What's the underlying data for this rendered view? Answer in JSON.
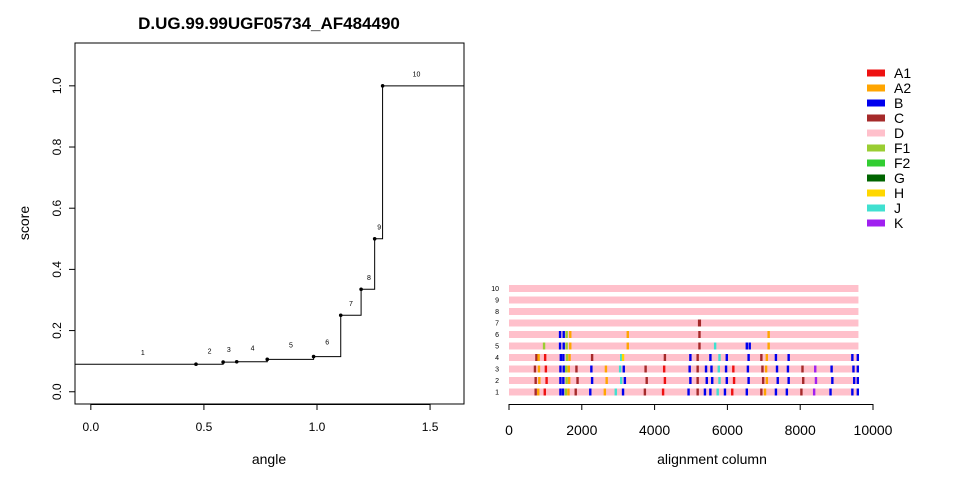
{
  "colors": {
    "A1": "#ee1111",
    "A2": "#ffa500",
    "B": "#0000ee",
    "C": "#a52a2a",
    "D": "#ffc0cb",
    "F1": "#9acd32",
    "F2": "#32cd32",
    "G": "#006400",
    "H": "#ffd700",
    "J": "#40e0d0",
    "K": "#a020f0"
  },
  "chart_data": [
    {
      "type": "line",
      "step": true,
      "title": "D.UG.99.99UGF05734_AF484490",
      "xlabel": "angle",
      "ylabel": "score",
      "xlim": [
        -0.07,
        1.65
      ],
      "ylim": [
        -0.04,
        1.14
      ],
      "xticks": [
        0.0,
        0.5,
        1.0,
        1.5
      ],
      "xtick_labels": [
        "0.0",
        "0.5",
        "1.0",
        "1.5"
      ],
      "yticks": [
        0.0,
        0.2,
        0.4,
        0.6,
        0.8,
        1.0
      ],
      "ytick_labels": [
        "0.0",
        "0.2",
        "0.4",
        "0.6",
        "0.8",
        "1.0"
      ],
      "points": [
        {
          "label": "1",
          "x": 0.465,
          "y": 0.09
        },
        {
          "label": "2",
          "x": 0.585,
          "y": 0.097
        },
        {
          "label": "3",
          "x": 0.645,
          "y": 0.098
        },
        {
          "label": "4",
          "x": 0.78,
          "y": 0.106
        },
        {
          "label": "5",
          "x": 0.985,
          "y": 0.115
        },
        {
          "label": "6",
          "x": 1.105,
          "y": 0.25
        },
        {
          "label": "7",
          "x": 1.195,
          "y": 0.335
        },
        {
          "label": "8",
          "x": 1.255,
          "y": 0.5
        },
        {
          "label": "9",
          "x": 1.29,
          "y": 1.0
        },
        {
          "label": "10",
          "x": 1.65,
          "y": 1.0
        }
      ],
      "start": {
        "x": -0.07,
        "y": 0.09
      },
      "label_positions": [
        {
          "label": "1",
          "x": 0.23,
          "y": 0.12
        },
        {
          "label": "2",
          "x": 0.525,
          "y": 0.125
        },
        {
          "label": "3",
          "x": 0.61,
          "y": 0.13
        },
        {
          "label": "4",
          "x": 0.715,
          "y": 0.135
        },
        {
          "label": "5",
          "x": 0.885,
          "y": 0.145
        },
        {
          "label": "6",
          "x": 1.045,
          "y": 0.155
        },
        {
          "label": "7",
          "x": 1.15,
          "y": 0.28
        },
        {
          "label": "8",
          "x": 1.23,
          "y": 0.365
        },
        {
          "label": "9",
          "x": 1.275,
          "y": 0.53
        },
        {
          "label": "10",
          "x": 1.44,
          "y": 1.03
        }
      ]
    },
    {
      "type": "heatmap",
      "xlabel": "alignment column",
      "xlim": [
        0,
        10000
      ],
      "xticks": [
        0,
        2000,
        4000,
        6000,
        8000,
        10000
      ],
      "xtick_labels": [
        "0",
        "2000",
        "4000",
        "6000",
        "8000",
        "10000"
      ],
      "row_labels": [
        "1",
        "2",
        "3",
        "4",
        "5",
        "6",
        "7",
        "8",
        "9",
        "10"
      ],
      "alignment_length": 9600,
      "background_subtype": "D",
      "legend": [
        "A1",
        "A2",
        "B",
        "C",
        "D",
        "F1",
        "F2",
        "G",
        "H",
        "J",
        "K"
      ],
      "rows": [
        {
          "label": "1",
          "segments": [
            [
              700,
              "C"
            ],
            [
              770,
              "A2"
            ],
            [
              950,
              "A1"
            ],
            [
              1380,
              "B"
            ],
            [
              1450,
              "B"
            ],
            [
              1530,
              "F1"
            ],
            [
              1600,
              "A2"
            ],
            [
              1800,
              "C"
            ],
            [
              2200,
              "B"
            ],
            [
              2600,
              "A2"
            ],
            [
              2900,
              "J"
            ],
            [
              3100,
              "B"
            ],
            [
              3700,
              "C"
            ],
            [
              4200,
              "A1"
            ],
            [
              4900,
              "B"
            ],
            [
              5150,
              "C"
            ],
            [
              5350,
              "B"
            ],
            [
              5500,
              "B"
            ],
            [
              5700,
              "J"
            ],
            [
              5900,
              "B"
            ],
            [
              6100,
              "A1"
            ],
            [
              6500,
              "B"
            ],
            [
              6900,
              "C"
            ],
            [
              7000,
              "A2"
            ],
            [
              7300,
              "B"
            ],
            [
              7600,
              "B"
            ],
            [
              8000,
              "C"
            ],
            [
              8350,
              "K"
            ],
            [
              8800,
              "B"
            ],
            [
              9400,
              "B"
            ],
            [
              9550,
              "B"
            ]
          ]
        },
        {
          "label": "2",
          "segments": [
            [
              700,
              "C"
            ],
            [
              800,
              "A2"
            ],
            [
              1000,
              "A1"
            ],
            [
              1380,
              "B"
            ],
            [
              1460,
              "B"
            ],
            [
              1550,
              "F1"
            ],
            [
              1620,
              "A2"
            ],
            [
              1850,
              "C"
            ],
            [
              2250,
              "B"
            ],
            [
              2650,
              "A2"
            ],
            [
              3050,
              "J"
            ],
            [
              3150,
              "B"
            ],
            [
              3750,
              "C"
            ],
            [
              4250,
              "A1"
            ],
            [
              4950,
              "B"
            ],
            [
              5150,
              "C"
            ],
            [
              5400,
              "B"
            ],
            [
              5550,
              "B"
            ],
            [
              5750,
              "J"
            ],
            [
              5950,
              "B"
            ],
            [
              6150,
              "A1"
            ],
            [
              6550,
              "B"
            ],
            [
              6950,
              "C"
            ],
            [
              7050,
              "A2"
            ],
            [
              7350,
              "B"
            ],
            [
              7650,
              "B"
            ],
            [
              8050,
              "C"
            ],
            [
              8400,
              "K"
            ],
            [
              8850,
              "B"
            ],
            [
              9450,
              "B"
            ],
            [
              9550,
              "B"
            ]
          ]
        },
        {
          "label": "3",
          "segments": [
            [
              680,
              "C"
            ],
            [
              790,
              "A2"
            ],
            [
              980,
              "A1"
            ],
            [
              1380,
              "B"
            ],
            [
              1470,
              "B"
            ],
            [
              1540,
              "F1"
            ],
            [
              1610,
              "A2"
            ],
            [
              1820,
              "C"
            ],
            [
              2230,
              "B"
            ],
            [
              2630,
              "A2"
            ],
            [
              3020,
              "J"
            ],
            [
              3120,
              "B"
            ],
            [
              3720,
              "C"
            ],
            [
              4230,
              "A1"
            ],
            [
              4930,
              "B"
            ],
            [
              5150,
              "C"
            ],
            [
              5380,
              "B"
            ],
            [
              5530,
              "B"
            ],
            [
              5730,
              "J"
            ],
            [
              5930,
              "B"
            ],
            [
              6130,
              "A1"
            ],
            [
              6530,
              "B"
            ],
            [
              6930,
              "C"
            ],
            [
              7030,
              "A2"
            ],
            [
              7330,
              "B"
            ],
            [
              7630,
              "B"
            ],
            [
              8030,
              "C"
            ],
            [
              8380,
              "K"
            ],
            [
              8830,
              "B"
            ],
            [
              9430,
              "B"
            ],
            [
              9550,
              "B"
            ]
          ]
        },
        {
          "label": "4",
          "segments": [
            [
              720,
              "C"
            ],
            [
              780,
              "A2"
            ],
            [
              960,
              "A1"
            ],
            [
              1390,
              "B"
            ],
            [
              1460,
              "B"
            ],
            [
              1560,
              "F1"
            ],
            [
              1630,
              "A2"
            ],
            [
              2250,
              "C"
            ],
            [
              3050,
              "J"
            ],
            [
              3100,
              "H"
            ],
            [
              4250,
              "C"
            ],
            [
              4950,
              "B"
            ],
            [
              5150,
              "C"
            ],
            [
              5500,
              "B"
            ],
            [
              5750,
              "J"
            ],
            [
              5950,
              "B"
            ],
            [
              6550,
              "B"
            ],
            [
              6900,
              "C"
            ],
            [
              7050,
              "A2"
            ],
            [
              7300,
              "B"
            ],
            [
              7650,
              "B"
            ],
            [
              9400,
              "B"
            ],
            [
              9550,
              "B"
            ]
          ]
        },
        {
          "label": "5",
          "segments": [
            [
              930,
              "F1"
            ],
            [
              1370,
              "B"
            ],
            [
              1470,
              "B"
            ],
            [
              1550,
              "F1"
            ],
            [
              1650,
              "A2"
            ],
            [
              3230,
              "A2"
            ],
            [
              5200,
              "C"
            ],
            [
              5630,
              "J"
            ],
            [
              6500,
              "B"
            ],
            [
              6580,
              "B"
            ],
            [
              7100,
              "A2"
            ]
          ]
        },
        {
          "label": "6",
          "segments": [
            [
              1370,
              "B"
            ],
            [
              1470,
              "B"
            ],
            [
              1550,
              "F1"
            ],
            [
              1650,
              "A2"
            ],
            [
              3230,
              "A2"
            ],
            [
              5200,
              "C"
            ],
            [
              7100,
              "A2"
            ]
          ]
        },
        {
          "label": "7",
          "segments": [
            [
              5190,
              "C"
            ],
            [
              5210,
              "C"
            ]
          ]
        },
        {
          "label": "8",
          "segments": []
        },
        {
          "label": "9",
          "segments": []
        },
        {
          "label": "10",
          "segments": []
        }
      ]
    }
  ]
}
